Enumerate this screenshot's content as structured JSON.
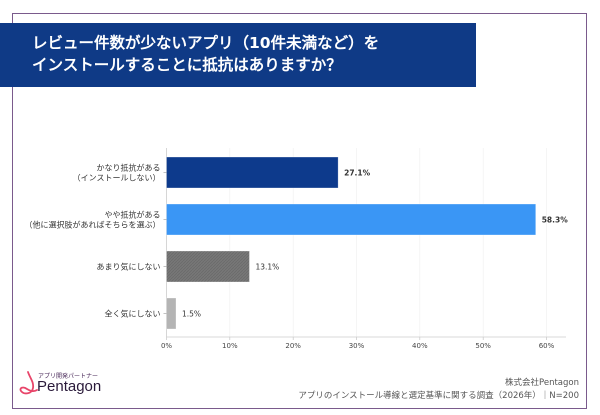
{
  "title": {
    "line1": "レビュー件数が少ないアプリ（10件未満など）を",
    "line2": "インストールすることに抵抗はありますか？"
  },
  "chart_data": {
    "type": "bar",
    "orientation": "horizontal",
    "categories": [
      [
        "かなり抵抗がある",
        "（インストールしない）"
      ],
      [
        "やや抵抗がある",
        "（他に選択肢があればそちらを選ぶ）"
      ],
      [
        "あまり気にしない"
      ],
      [
        "全く気にしない"
      ]
    ],
    "values": [
      27.1,
      58.3,
      13.1,
      1.5
    ],
    "value_labels": [
      "27.1%",
      "58.3%",
      "13.1%",
      "1.5%"
    ],
    "colors": [
      "#0d3a8c",
      "#3a96f5",
      "#777777",
      "#b4b4b4"
    ],
    "label_colors": [
      "#1a3f9a",
      "#333333",
      "#555555",
      "#555555"
    ],
    "xlim": [
      0,
      60
    ],
    "ticks": [
      "0%",
      "10%",
      "20%",
      "30%",
      "40%",
      "50%",
      "60%"
    ],
    "grid": true
  },
  "footer": {
    "logo_sub": "アプリ開発パートナー",
    "logo_name": "Pentagon",
    "company": "株式会社Pentagon",
    "source": "アプリのインストール導線と選定基準に関する調査（2026年）｜N=200"
  }
}
